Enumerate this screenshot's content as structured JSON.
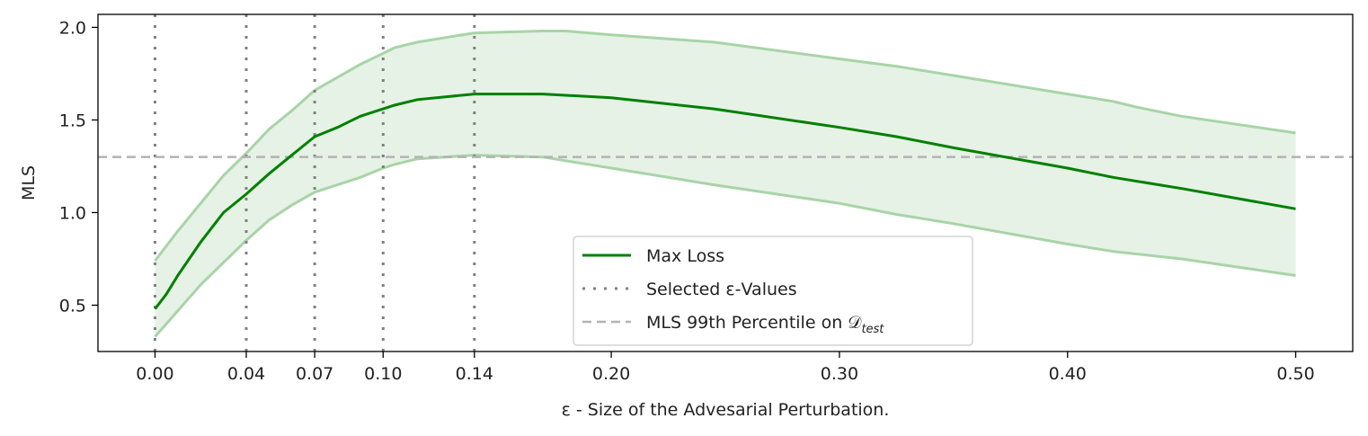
{
  "chart_data": {
    "type": "line",
    "title": "",
    "xlabel": "ε - Size of the Advesarial Perturbation.",
    "ylabel": "MLS",
    "xlim": [
      -0.025,
      0.525
    ],
    "ylim": [
      0.25,
      2.07
    ],
    "xticks": [
      0.0,
      0.04,
      0.07,
      0.1,
      0.14,
      0.2,
      0.3,
      0.4,
      0.5
    ],
    "xtick_labels": [
      "0.00",
      "0.04",
      "0.07",
      "0.10",
      "0.14",
      "0.20",
      "0.30",
      "0.40",
      "0.50"
    ],
    "yticks": [
      0.5,
      1.0,
      1.5,
      2.0
    ],
    "ytick_labels": [
      "0.5",
      "1.0",
      "1.5",
      "2.0"
    ],
    "grid": false,
    "legend_position": "lower-center",
    "colors": {
      "line": "#008000",
      "band_fill": "#e6f2e6",
      "band_edge": "#a8d4a8",
      "selected": "#808080",
      "threshold": "#b3b3b3"
    },
    "series": [
      {
        "name": "Max Loss",
        "x": [
          0.0,
          0.005,
          0.01,
          0.02,
          0.03,
          0.04,
          0.05,
          0.06,
          0.07,
          0.08,
          0.09,
          0.1,
          0.105,
          0.115,
          0.14,
          0.17,
          0.2,
          0.245,
          0.3,
          0.325,
          0.35,
          0.4,
          0.42,
          0.45,
          0.5
        ],
        "values": [
          0.48,
          0.56,
          0.66,
          0.84,
          1.0,
          1.1,
          1.21,
          1.31,
          1.41,
          1.46,
          1.52,
          1.56,
          1.58,
          1.61,
          1.64,
          1.64,
          1.62,
          1.56,
          1.46,
          1.41,
          1.35,
          1.24,
          1.19,
          1.13,
          1.02
        ]
      },
      {
        "name": "Upper band",
        "x": [
          0.0,
          0.01,
          0.02,
          0.03,
          0.04,
          0.05,
          0.06,
          0.07,
          0.08,
          0.09,
          0.1,
          0.105,
          0.115,
          0.14,
          0.17,
          0.18,
          0.2,
          0.245,
          0.3,
          0.325,
          0.35,
          0.4,
          0.42,
          0.43,
          0.45,
          0.5
        ],
        "values": [
          0.74,
          0.9,
          1.05,
          1.2,
          1.32,
          1.45,
          1.55,
          1.66,
          1.73,
          1.8,
          1.86,
          1.89,
          1.92,
          1.97,
          1.98,
          1.98,
          1.96,
          1.92,
          1.83,
          1.79,
          1.74,
          1.64,
          1.6,
          1.57,
          1.52,
          1.43
        ]
      },
      {
        "name": "Lower band",
        "x": [
          0.0,
          0.01,
          0.02,
          0.03,
          0.04,
          0.05,
          0.06,
          0.07,
          0.08,
          0.09,
          0.1,
          0.105,
          0.115,
          0.14,
          0.17,
          0.2,
          0.245,
          0.3,
          0.325,
          0.35,
          0.4,
          0.42,
          0.45,
          0.5
        ],
        "values": [
          0.33,
          0.47,
          0.61,
          0.73,
          0.85,
          0.96,
          1.04,
          1.11,
          1.15,
          1.19,
          1.24,
          1.26,
          1.29,
          1.31,
          1.3,
          1.24,
          1.15,
          1.05,
          0.99,
          0.94,
          0.83,
          0.79,
          0.75,
          0.66
        ]
      }
    ],
    "selected_epsilons": [
      0.0,
      0.04,
      0.07,
      0.1,
      0.14
    ],
    "threshold": 1.3,
    "legend": [
      {
        "label": "Max Loss",
        "style": "solid"
      },
      {
        "label": "Selected ε-Values",
        "style": "dotted"
      },
      {
        "label": "MLS 99th Percentile on 𝒟",
        "label_sub": "test",
        "style": "dashed"
      }
    ]
  }
}
